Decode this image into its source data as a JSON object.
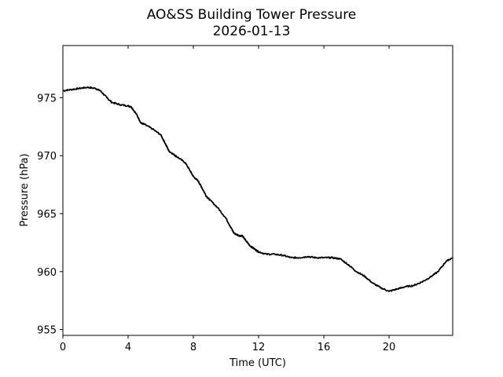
{
  "chart_data": {
    "type": "line",
    "title": "AO&SS Building Tower Pressure",
    "subtitle": "2026-01-13",
    "xlabel": "Time (UTC)",
    "ylabel": "Pressure (hPa)",
    "xlim": [
      0,
      23.9
    ],
    "ylim": [
      954.5,
      979.5
    ],
    "xticks": [
      0,
      4,
      8,
      12,
      16,
      20
    ],
    "yticks": [
      955,
      960,
      965,
      970,
      975
    ],
    "grid": false,
    "line_color": "#000000",
    "series": [
      {
        "x": [
          0,
          0.5,
          1.0,
          1.5,
          2.0,
          2.3,
          2.7,
          3.0,
          3.5,
          4.0,
          4.2,
          4.5,
          4.8,
          5.0,
          5.5,
          6.0,
          6.3,
          6.5,
          6.8,
          7.0,
          7.5,
          7.8,
          8.0,
          8.3,
          8.5,
          8.8,
          9.0,
          9.5,
          10.0,
          10.3,
          10.5,
          10.8,
          11.0,
          11.2,
          11.5,
          11.8,
          12.0,
          12.5,
          13.0,
          13.5,
          14.0,
          14.5,
          15.0,
          15.5,
          16.0,
          16.5,
          17.0,
          17.5,
          18.0,
          18.5,
          19.0,
          19.5,
          20.0,
          20.5,
          21.0,
          21.5,
          22.0,
          22.5,
          23.0,
          23.5,
          23.9
        ],
        "y": [
          975.6,
          975.7,
          975.8,
          975.9,
          975.8,
          975.6,
          975.0,
          974.6,
          974.4,
          974.3,
          974.2,
          973.6,
          972.8,
          972.7,
          972.3,
          971.8,
          971.0,
          970.4,
          970.1,
          969.9,
          969.4,
          968.7,
          968.2,
          967.8,
          967.3,
          966.5,
          966.2,
          965.5,
          964.6,
          963.8,
          963.3,
          963.1,
          963.1,
          962.7,
          962.2,
          961.9,
          961.7,
          961.5,
          961.5,
          961.4,
          961.2,
          961.2,
          961.3,
          961.2,
          961.2,
          961.2,
          961.1,
          960.6,
          960.0,
          959.6,
          959.0,
          958.6,
          958.3,
          958.5,
          958.7,
          958.8,
          959.1,
          959.5,
          960.0,
          960.9,
          961.2
        ]
      }
    ]
  }
}
